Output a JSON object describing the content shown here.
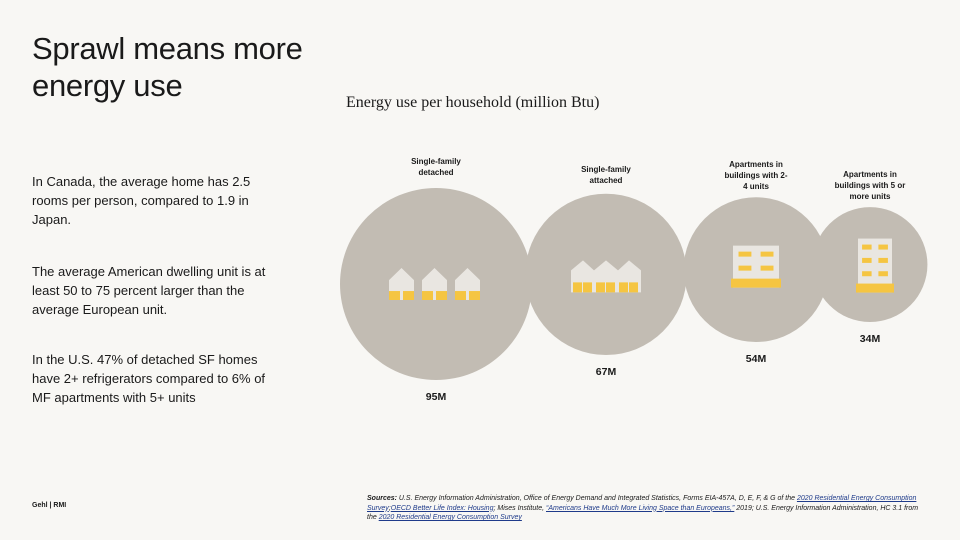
{
  "slide": {
    "title": "Sprawl means more energy use",
    "chart_title": "Energy use per household (million Btu)",
    "paragraphs": [
      "In Canada, the average home has 2.5 rooms per person, compared to 1.9 in Japan.",
      "The average American dwelling unit is at least 50 to 75 percent larger than the average European unit.",
      "In the U.S. 47% of detached SF homes have 2+ refrigerators compared to 6% of MF apartments with 5+ units"
    ],
    "logo": "Gehl | RMI",
    "sources": {
      "label": "Sources:",
      "text_1": " U.S. Energy Information Administration, Office of Energy Demand and Integrated Statistics, Forms EIA-457A, D, E, F, & G of the ",
      "link_1": "2020 Residential Energy Consumption Survey",
      "sep_1": ";",
      "link_2": "OECD Better Life Index: Housing",
      "text_2": "; Mises Institute, ",
      "link_3": "“Americans Have Much More Living Space than Europeans,”",
      "text_3": " 2019; U.S. Energy Information Administration, HC 3.1 from the ",
      "link_4": "2020 Residential Energy Consumption Survey"
    }
  },
  "colors": {
    "bubble": "#c2bcb3",
    "house": "#e9e6e1",
    "accent": "#f5c542",
    "background": "#f8f7f4"
  },
  "chart_data": {
    "type": "bubble",
    "title": "Energy use per household (million Btu)",
    "categories": [
      {
        "label_lines": [
          "Single-family",
          "detached"
        ],
        "value": 95,
        "value_label": "95M",
        "icon": "detached-houses-icon"
      },
      {
        "label_lines": [
          "Single-family",
          "attached"
        ],
        "value": 67,
        "value_label": "67M",
        "icon": "attached-houses-icon"
      },
      {
        "label_lines": [
          "Apartments in",
          "buildings with 2-",
          "4 units"
        ],
        "value": 54,
        "value_label": "54M",
        "icon": "small-apartment-icon"
      },
      {
        "label_lines": [
          "Apartments in",
          "buildings with 5 or",
          "more units"
        ],
        "value": 34,
        "value_label": "34M",
        "icon": "large-apartment-icon"
      }
    ]
  }
}
